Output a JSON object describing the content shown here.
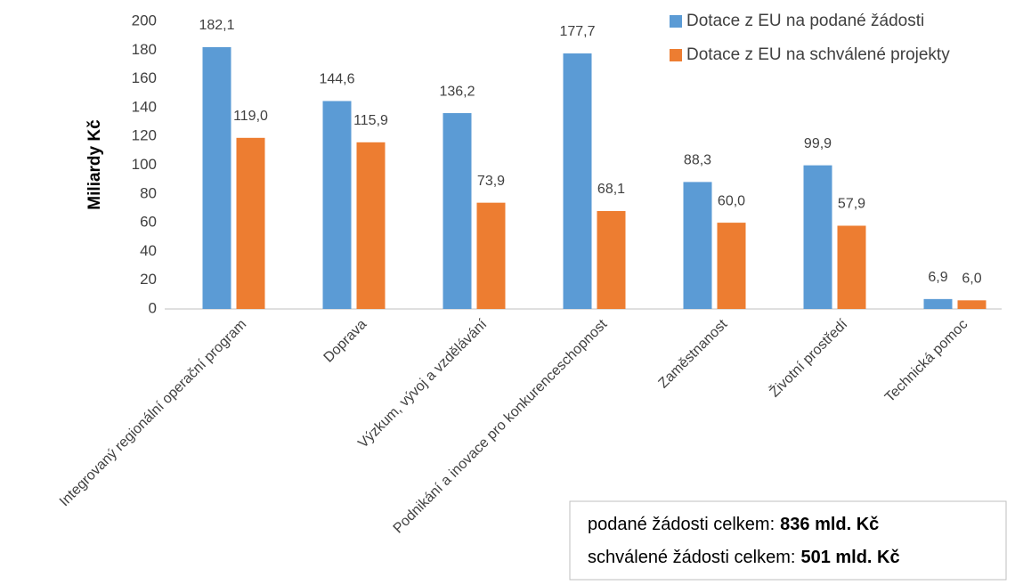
{
  "chart_data": {
    "type": "bar",
    "y_label": "Miliardy Kč",
    "categories": [
      "Integrovaný regionální operační program",
      "Doprava",
      "Výzkum, vývoj a vzdělávání",
      "Podnikání a inovace pro konkurenceschopnost",
      "Zaměstnanost",
      "Životní prostředí",
      "Technická pomoc"
    ],
    "series": [
      {
        "name": "Dotace z EU na podané žádosti",
        "color": "#5b9bd5",
        "values": [
          182.1,
          144.6,
          136.2,
          177.7,
          88.3,
          99.9,
          6.9
        ],
        "value_labels": [
          "182,1",
          "144,6",
          "136,2",
          "177,7",
          "88,3",
          "99,9",
          "6,9"
        ]
      },
      {
        "name": "Dotace z EU na schválené projekty",
        "color": "#ed7d31",
        "values": [
          119.0,
          115.9,
          73.9,
          68.1,
          60.0,
          57.9,
          6.0
        ],
        "value_labels": [
          "119,0",
          "115,9",
          "73,9",
          "68,1",
          "60,0",
          "57,9",
          "6,0"
        ]
      }
    ],
    "ylim": [
      0,
      200
    ],
    "yticks": [
      0,
      20,
      40,
      60,
      80,
      100,
      120,
      140,
      160,
      180,
      200
    ],
    "grid": false,
    "legend": "top-right",
    "annotations": [
      {
        "text": "podané žádosti celkem:",
        "bold": "836 mld. Kč"
      },
      {
        "text": "schválené žádosti celkem:",
        "bold": "501 mld. Kč"
      }
    ]
  }
}
